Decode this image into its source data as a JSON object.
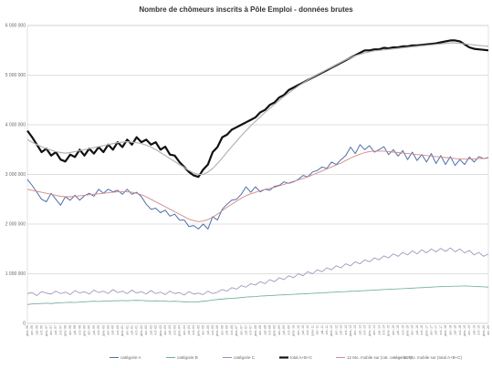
{
  "chart_data": {
    "type": "line",
    "title": "Nombre de chômeurs inscrits à Pôle Emploi - données brutes",
    "xlabel": "",
    "ylabel": "",
    "ylim": [
      0,
      6000000
    ],
    "y_ticks": [
      "0",
      "1 000 000",
      "2 000 000",
      "3 000 000",
      "4 000 000",
      "5 000 000",
      "6 000 000"
    ],
    "grid": true,
    "legend_position": "bottom",
    "x_points": 98,
    "x": [
      "janv.-96",
      "avr.-96",
      "juil.-96",
      "oct.-96",
      "janv.-97",
      "avr.-97",
      "juil.-97",
      "oct.-97",
      "janv.-98",
      "avr.-98",
      "juil.-98",
      "oct.-98",
      "janv.-99",
      "avr.-99",
      "juil.-99",
      "oct.-99",
      "janv.-00",
      "avr.-00",
      "juil.-00",
      "oct.-00",
      "janv.-01",
      "avr.-01",
      "juil.-01",
      "oct.-01",
      "janv.-02",
      "avr.-02",
      "juil.-02",
      "oct.-02",
      "janv.-03",
      "avr.-03",
      "juil.-03",
      "oct.-03",
      "janv.-04",
      "avr.-04",
      "juil.-04",
      "oct.-04",
      "janv.-05",
      "avr.-05",
      "juil.-05",
      "oct.-05",
      "janv.-06",
      "avr.-06",
      "juil.-06",
      "oct.-06",
      "janv.-07",
      "avr.-07",
      "juil.-07",
      "oct.-07",
      "janv.-08",
      "avr.-08",
      "juil.-08",
      "oct.-08",
      "janv.-09",
      "avr.-09",
      "juil.-09",
      "oct.-09",
      "janv.-10",
      "avr.-10",
      "juil.-10",
      "oct.-10",
      "janv.-11",
      "avr.-11",
      "juil.-11",
      "oct.-11",
      "janv.-12",
      "avr.-12",
      "juil.-12",
      "oct.-12",
      "janv.-13",
      "avr.-13",
      "juil.-13",
      "oct.-13",
      "janv.-14",
      "avr.-14",
      "juil.-14",
      "oct.-14",
      "janv.-15",
      "avr.-15",
      "juil.-15",
      "oct.-15",
      "janv.-16",
      "avr.-16",
      "juil.-16",
      "oct.-16",
      "janv.-17",
      "avr.-17",
      "juil.-17",
      "oct.-17",
      "janv.-18",
      "avr.-18",
      "juil.-18",
      "oct.-18",
      "janv.-19",
      "avr.-19",
      "juil.-19",
      "oct.-19",
      "janv.-20",
      "avr.-20"
    ],
    "series": [
      {
        "name": "catégorie A",
        "color": "#4f6fa8",
        "width": 1,
        "values": [
          2900000,
          2780000,
          2640000,
          2500000,
          2450000,
          2620000,
          2500000,
          2380000,
          2550000,
          2480000,
          2580000,
          2480000,
          2570000,
          2620000,
          2560000,
          2700000,
          2620000,
          2700000,
          2650000,
          2680000,
          2600000,
          2700000,
          2600000,
          2640000,
          2550000,
          2400000,
          2300000,
          2320000,
          2230000,
          2280000,
          2160000,
          2200000,
          2080000,
          2080000,
          1950000,
          1970000,
          1900000,
          2000000,
          1900000,
          2150000,
          2080000,
          2300000,
          2400000,
          2480000,
          2500000,
          2600000,
          2750000,
          2640000,
          2750000,
          2650000,
          2700000,
          2680000,
          2760000,
          2780000,
          2850000,
          2820000,
          2850000,
          2900000,
          2980000,
          2950000,
          3050000,
          3080000,
          3150000,
          3120000,
          3250000,
          3200000,
          3300000,
          3380000,
          3550000,
          3420000,
          3600000,
          3500000,
          3580000,
          3450000,
          3500000,
          3560000,
          3400000,
          3500000,
          3370000,
          3480000,
          3300000,
          3450000,
          3280000,
          3400000,
          3250000,
          3420000,
          3220000,
          3380000,
          3200000,
          3360000,
          3180000,
          3300000,
          3200000,
          3350000,
          3250000,
          3360000,
          3320000,
          3340000
        ]
      },
      {
        "name": "catégorie B",
        "color": "#6aaa9a",
        "width": 0.8,
        "values": [
          380000,
          390000,
          395000,
          400000,
          405000,
          400000,
          410000,
          415000,
          420000,
          425000,
          420000,
          430000,
          435000,
          440000,
          445000,
          440000,
          445000,
          450000,
          455000,
          455000,
          460000,
          455000,
          460000,
          465000,
          460000,
          455000,
          450000,
          455000,
          450000,
          445000,
          440000,
          445000,
          440000,
          435000,
          430000,
          430000,
          435000,
          445000,
          455000,
          470000,
          480000,
          490000,
          500000,
          505000,
          510000,
          520000,
          530000,
          535000,
          540000,
          550000,
          555000,
          560000,
          565000,
          570000,
          575000,
          580000,
          585000,
          590000,
          595000,
          600000,
          605000,
          610000,
          615000,
          620000,
          625000,
          630000,
          635000,
          640000,
          645000,
          650000,
          655000,
          660000,
          665000,
          670000,
          675000,
          680000,
          685000,
          690000,
          695000,
          700000,
          705000,
          710000,
          715000,
          720000,
          725000,
          730000,
          735000,
          740000,
          745000,
          745000,
          750000,
          750000,
          755000,
          750000,
          745000,
          740000,
          735000,
          730000
        ]
      },
      {
        "name": "catégorie C",
        "color": "#9b8ab8",
        "width": 0.8,
        "values": [
          600000,
          620000,
          560000,
          640000,
          610000,
          590000,
          650000,
          600000,
          630000,
          580000,
          660000,
          610000,
          640000,
          590000,
          670000,
          620000,
          650000,
          600000,
          680000,
          620000,
          650000,
          600000,
          670000,
          610000,
          640000,
          590000,
          660000,
          600000,
          630000,
          580000,
          650000,
          600000,
          620000,
          570000,
          640000,
          590000,
          610000,
          580000,
          650000,
          600000,
          630000,
          680000,
          650000,
          720000,
          690000,
          760000,
          730000,
          800000,
          770000,
          840000,
          800000,
          880000,
          840000,
          920000,
          880000,
          960000,
          920000,
          1000000,
          960000,
          1040000,
          1000000,
          1080000,
          1040000,
          1120000,
          1080000,
          1160000,
          1120000,
          1200000,
          1160000,
          1240000,
          1200000,
          1280000,
          1240000,
          1320000,
          1280000,
          1360000,
          1320000,
          1400000,
          1350000,
          1430000,
          1380000,
          1460000,
          1400000,
          1480000,
          1420000,
          1500000,
          1440000,
          1510000,
          1450000,
          1520000,
          1440000,
          1500000,
          1420000,
          1470000,
          1380000,
          1430000,
          1350000,
          1400000
        ]
      },
      {
        "name": "total A+B+C",
        "color": "#111111",
        "width": 2.2,
        "values": [
          3880000,
          3750000,
          3600000,
          3450000,
          3520000,
          3380000,
          3450000,
          3300000,
          3260000,
          3400000,
          3350000,
          3500000,
          3380000,
          3520000,
          3420000,
          3550000,
          3450000,
          3600000,
          3500000,
          3650000,
          3550000,
          3700000,
          3600000,
          3750000,
          3650000,
          3700000,
          3600000,
          3650000,
          3500000,
          3560000,
          3400000,
          3380000,
          3250000,
          3150000,
          3050000,
          2980000,
          2950000,
          3100000,
          3200000,
          3450000,
          3550000,
          3750000,
          3800000,
          3900000,
          3950000,
          4000000,
          4050000,
          4100000,
          4150000,
          4250000,
          4300000,
          4400000,
          4450000,
          4550000,
          4600000,
          4700000,
          4750000,
          4800000,
          4850000,
          4900000,
          4950000,
          5000000,
          5050000,
          5100000,
          5150000,
          5200000,
          5250000,
          5300000,
          5350000,
          5400000,
          5450000,
          5500000,
          5500000,
          5520000,
          5520000,
          5550000,
          5540000,
          5560000,
          5560000,
          5580000,
          5580000,
          5600000,
          5600000,
          5610000,
          5620000,
          5630000,
          5640000,
          5660000,
          5680000,
          5700000,
          5700000,
          5680000,
          5620000,
          5560000,
          5530000,
          5520000,
          5510000,
          5500000
        ]
      },
      {
        "name": "12 Mo. mobile sur (cat. catégorie A)",
        "color": "#d28a8a",
        "width": 0.9,
        "values": [
          2700000,
          2680000,
          2660000,
          2640000,
          2620000,
          2600000,
          2580000,
          2560000,
          2550000,
          2550000,
          2560000,
          2570000,
          2580000,
          2590000,
          2600000,
          2610000,
          2620000,
          2630000,
          2640000,
          2650000,
          2650000,
          2650000,
          2640000,
          2620000,
          2590000,
          2550000,
          2500000,
          2450000,
          2400000,
          2350000,
          2300000,
          2250000,
          2200000,
          2150000,
          2100000,
          2070000,
          2050000,
          2060000,
          2090000,
          2140000,
          2200000,
          2270000,
          2340000,
          2400000,
          2460000,
          2520000,
          2570000,
          2610000,
          2640000,
          2670000,
          2700000,
          2720000,
          2740000,
          2770000,
          2800000,
          2830000,
          2860000,
          2890000,
          2920000,
          2950000,
          2990000,
          3030000,
          3070000,
          3110000,
          3150000,
          3190000,
          3230000,
          3280000,
          3330000,
          3370000,
          3410000,
          3440000,
          3460000,
          3470000,
          3470000,
          3470000,
          3460000,
          3450000,
          3440000,
          3430000,
          3420000,
          3410000,
          3400000,
          3390000,
          3380000,
          3370000,
          3360000,
          3350000,
          3340000,
          3330000,
          3320000,
          3310000,
          3310000,
          3310000,
          3310000,
          3320000,
          3320000,
          3330000
        ]
      },
      {
        "name": "12 Mo. mobile sur (total A+B+C)",
        "color": "#b3b3b3",
        "width": 1.2,
        "values": [
          3700000,
          3650000,
          3600000,
          3560000,
          3520000,
          3490000,
          3460000,
          3440000,
          3430000,
          3440000,
          3460000,
          3480000,
          3500000,
          3520000,
          3540000,
          3560000,
          3580000,
          3600000,
          3620000,
          3640000,
          3650000,
          3660000,
          3650000,
          3640000,
          3620000,
          3590000,
          3550000,
          3500000,
          3440000,
          3380000,
          3320000,
          3260000,
          3200000,
          3140000,
          3080000,
          3030000,
          3000000,
          3000000,
          3050000,
          3120000,
          3220000,
          3330000,
          3450000,
          3560000,
          3670000,
          3780000,
          3880000,
          3980000,
          4070000,
          4160000,
          4250000,
          4330000,
          4410000,
          4490000,
          4570000,
          4640000,
          4710000,
          4780000,
          4840000,
          4900000,
          4960000,
          5010000,
          5060000,
          5110000,
          5160000,
          5210000,
          5260000,
          5310000,
          5350000,
          5390000,
          5420000,
          5450000,
          5470000,
          5490000,
          5500000,
          5510000,
          5520000,
          5530000,
          5540000,
          5550000,
          5560000,
          5570000,
          5580000,
          5590000,
          5600000,
          5610000,
          5620000,
          5630000,
          5640000,
          5650000,
          5650000,
          5640000,
          5630000,
          5620000,
          5610000,
          5600000,
          5590000,
          5580000
        ]
      }
    ]
  }
}
